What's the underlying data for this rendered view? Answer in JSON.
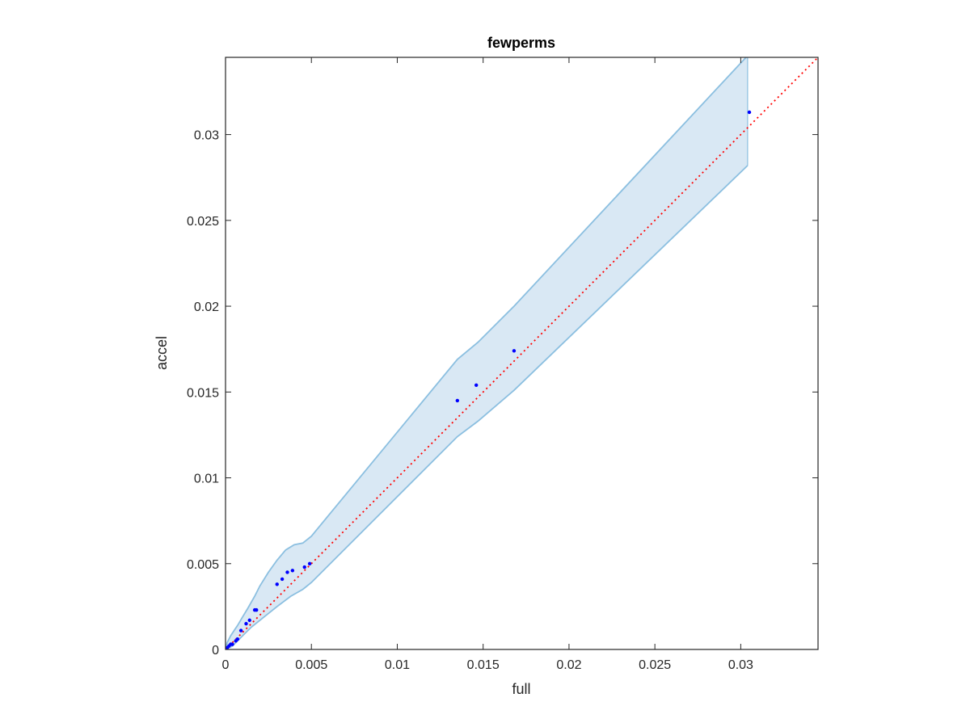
{
  "chart_data": {
    "type": "scatter",
    "title": "fewperms",
    "xlabel": "full",
    "ylabel": "accel",
    "xlim": [
      0,
      0.0345
    ],
    "ylim": [
      0,
      0.0345
    ],
    "grid": false,
    "box": true,
    "x_ticks": [
      0,
      0.005,
      0.01,
      0.015,
      0.02,
      0.025,
      0.03
    ],
    "x_tick_labels": [
      "0",
      "0.005",
      "0.01",
      "0.015",
      "0.02",
      "0.025",
      "0.03"
    ],
    "y_ticks": [
      0,
      0.005,
      0.01,
      0.015,
      0.02,
      0.025,
      0.03
    ],
    "y_tick_labels": [
      "0",
      "0.005",
      "0.01",
      "0.015",
      "0.02",
      "0.025",
      "0.03"
    ],
    "colors": {
      "points": "#0000ff",
      "band_fill": "#d9e8f4",
      "band_edge": "#8bbfe0",
      "reference_line": "#ff0000",
      "axes": "#262626"
    },
    "reference_line": {
      "from": [
        0,
        0
      ],
      "to": [
        0.0345,
        0.0345
      ],
      "style": "dotted"
    },
    "band": {
      "upper": [
        [
          0.0,
          0.0
        ],
        [
          0.0001,
          0.0004
        ],
        [
          0.0003,
          0.0008
        ],
        [
          0.0005,
          0.0011
        ],
        [
          0.0007,
          0.0014
        ],
        [
          0.001,
          0.0019
        ],
        [
          0.0013,
          0.0024
        ],
        [
          0.0017,
          0.0031
        ],
        [
          0.002,
          0.0037
        ],
        [
          0.0025,
          0.0045
        ],
        [
          0.003,
          0.0052
        ],
        [
          0.0035,
          0.0058
        ],
        [
          0.004,
          0.0061
        ],
        [
          0.0045,
          0.0062
        ],
        [
          0.005,
          0.0066
        ],
        [
          0.0135,
          0.0169
        ],
        [
          0.0147,
          0.0179
        ],
        [
          0.0168,
          0.02
        ],
        [
          0.0304,
          0.0346
        ]
      ],
      "lower": [
        [
          0.0304,
          0.0282
        ],
        [
          0.0168,
          0.0151
        ],
        [
          0.0147,
          0.0133
        ],
        [
          0.0135,
          0.0124
        ],
        [
          0.005,
          0.0039
        ],
        [
          0.0045,
          0.0035
        ],
        [
          0.0038,
          0.0031
        ],
        [
          0.003,
          0.0025
        ],
        [
          0.0025,
          0.0021
        ],
        [
          0.002,
          0.0017
        ],
        [
          0.0015,
          0.0013
        ],
        [
          0.001,
          0.0008
        ],
        [
          0.0007,
          0.0005
        ],
        [
          0.0004,
          0.0002
        ],
        [
          0.0,
          0.0
        ]
      ]
    },
    "series": [
      {
        "x": [
          0.0305,
          0.0168,
          0.0146,
          0.0135,
          0.0049,
          0.0046,
          0.0039,
          0.0036,
          0.0033,
          0.003,
          0.0018,
          0.0017,
          0.0014,
          0.0012,
          0.0009,
          0.0007,
          0.0006,
          0.0004,
          0.0003,
          0.0002,
          0.0001,
          0.0
        ],
        "y": [
          0.0313,
          0.0174,
          0.0154,
          0.0145,
          0.005,
          0.0048,
          0.0046,
          0.0045,
          0.0041,
          0.0038,
          0.0023,
          0.0023,
          0.0017,
          0.0015,
          0.0011,
          0.0006,
          0.0005,
          0.0003,
          0.0003,
          0.0002,
          0.0001,
          0.0
        ]
      }
    ]
  }
}
